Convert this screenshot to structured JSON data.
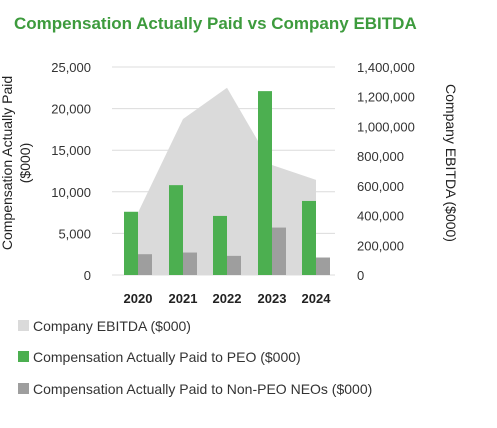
{
  "chart_data": {
    "type": "bar",
    "title": "Compensation Actually Paid vs Company EBITDA",
    "categories": [
      "2020",
      "2021",
      "2022",
      "2023",
      "2024"
    ],
    "y_left": {
      "label_lines": [
        "Compensation Actually Paid",
        "($000)"
      ],
      "range": [
        0,
        25000
      ],
      "ticks": [
        "0",
        "5,000",
        "10,000",
        "15,000",
        "20,000",
        "25,000"
      ]
    },
    "y_right": {
      "label": "Company EBITDA ($000)",
      "range": [
        0,
        1400000
      ],
      "ticks": [
        "0",
        "200,000",
        "400,000",
        "600,000",
        "800,000",
        "1,000,000",
        "1,200,000",
        "1,400,000"
      ]
    },
    "series": [
      {
        "name": "Company EBITDA ($000)",
        "kind": "area",
        "axis": "right",
        "color": "#dadada",
        "values": [
          420000,
          1050000,
          1260000,
          740000,
          640000
        ]
      },
      {
        "name": "Compensation Actually Paid to PEO ($000)",
        "kind": "bar",
        "axis": "left",
        "color": "#4caf50",
        "values": [
          7600,
          10800,
          7100,
          22100,
          8900
        ]
      },
      {
        "name": "Compensation Actually Paid to Non-PEO NEOs ($000)",
        "kind": "bar",
        "axis": "left",
        "color": "#9e9e9e",
        "values": [
          2500,
          2700,
          2300,
          5700,
          2100
        ]
      }
    ],
    "grid": true,
    "legend_position": "bottom",
    "title_color": "#3d9b3d"
  }
}
